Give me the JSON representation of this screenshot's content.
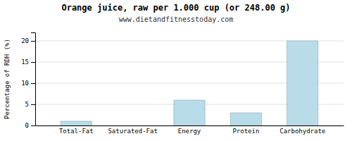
{
  "chart_data": {
    "type": "bar",
    "title": "Orange juice, raw per 1.000 cup (or 248.00 g)",
    "subtitle": "www.dietandfitnesstoday.com",
    "categories": [
      "Total-Fat",
      "Saturated-Fat",
      "Energy",
      "Protein",
      "Carbohydrate"
    ],
    "values": [
      1.0,
      0.0,
      6.0,
      3.0,
      20.0
    ],
    "color": "#b8dce8",
    "ylabel": "Percentage of RDH (%)",
    "ylim": [
      0,
      22
    ],
    "yticks": [
      0,
      5,
      10,
      15,
      20
    ],
    "grid": true
  }
}
